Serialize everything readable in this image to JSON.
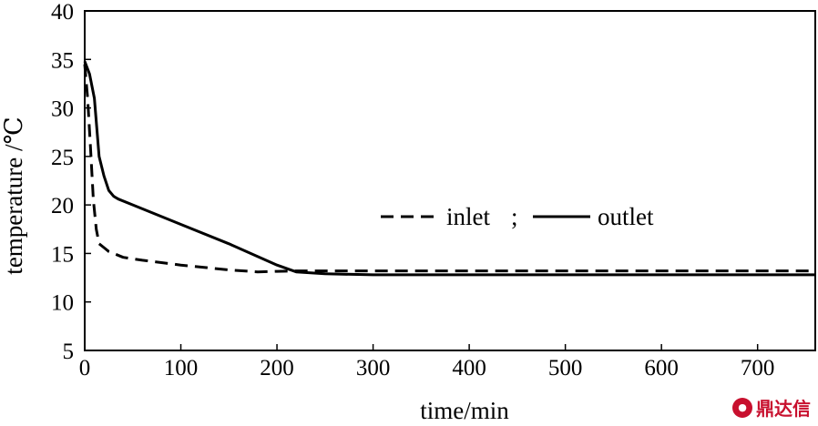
{
  "chart_data": {
    "type": "line",
    "xlabel": "time/min",
    "ylabel": "temperature /℃",
    "xlim": [
      0,
      760
    ],
    "ylim": [
      5,
      40
    ],
    "xticks": [
      0,
      100,
      200,
      300,
      400,
      500,
      600,
      700
    ],
    "yticks": [
      5,
      10,
      15,
      20,
      25,
      30,
      35,
      40
    ],
    "legend": {
      "placement": "center-right",
      "separator": ";"
    },
    "series": [
      {
        "name": "inlet",
        "style": "dashed",
        "color": "#000000",
        "x": [
          0,
          3,
          6,
          9,
          12,
          15,
          20,
          25,
          30,
          40,
          60,
          100,
          150,
          180,
          200,
          220,
          300,
          400,
          500,
          600,
          700,
          760
        ],
        "y": [
          34.5,
          31,
          26,
          20.5,
          17.5,
          16,
          15.6,
          15.2,
          15,
          14.6,
          14.3,
          13.8,
          13.3,
          13.1,
          13.15,
          13.2,
          13.2,
          13.2,
          13.2,
          13.2,
          13.2,
          13.2
        ]
      },
      {
        "name": "outlet",
        "style": "solid",
        "color": "#000000",
        "x": [
          0,
          5,
          10,
          15,
          20,
          25,
          30,
          35,
          50,
          100,
          150,
          200,
          220,
          250,
          300,
          400,
          500,
          600,
          700,
          760
        ],
        "y": [
          34.8,
          33.5,
          31,
          25,
          23,
          21.5,
          20.9,
          20.6,
          20,
          18,
          16,
          13.8,
          13.1,
          12.9,
          12.8,
          12.8,
          12.8,
          12.8,
          12.8,
          12.8
        ]
      }
    ]
  },
  "watermark": {
    "text": "鼎达信",
    "icon_name": "brand-logo-icon"
  }
}
